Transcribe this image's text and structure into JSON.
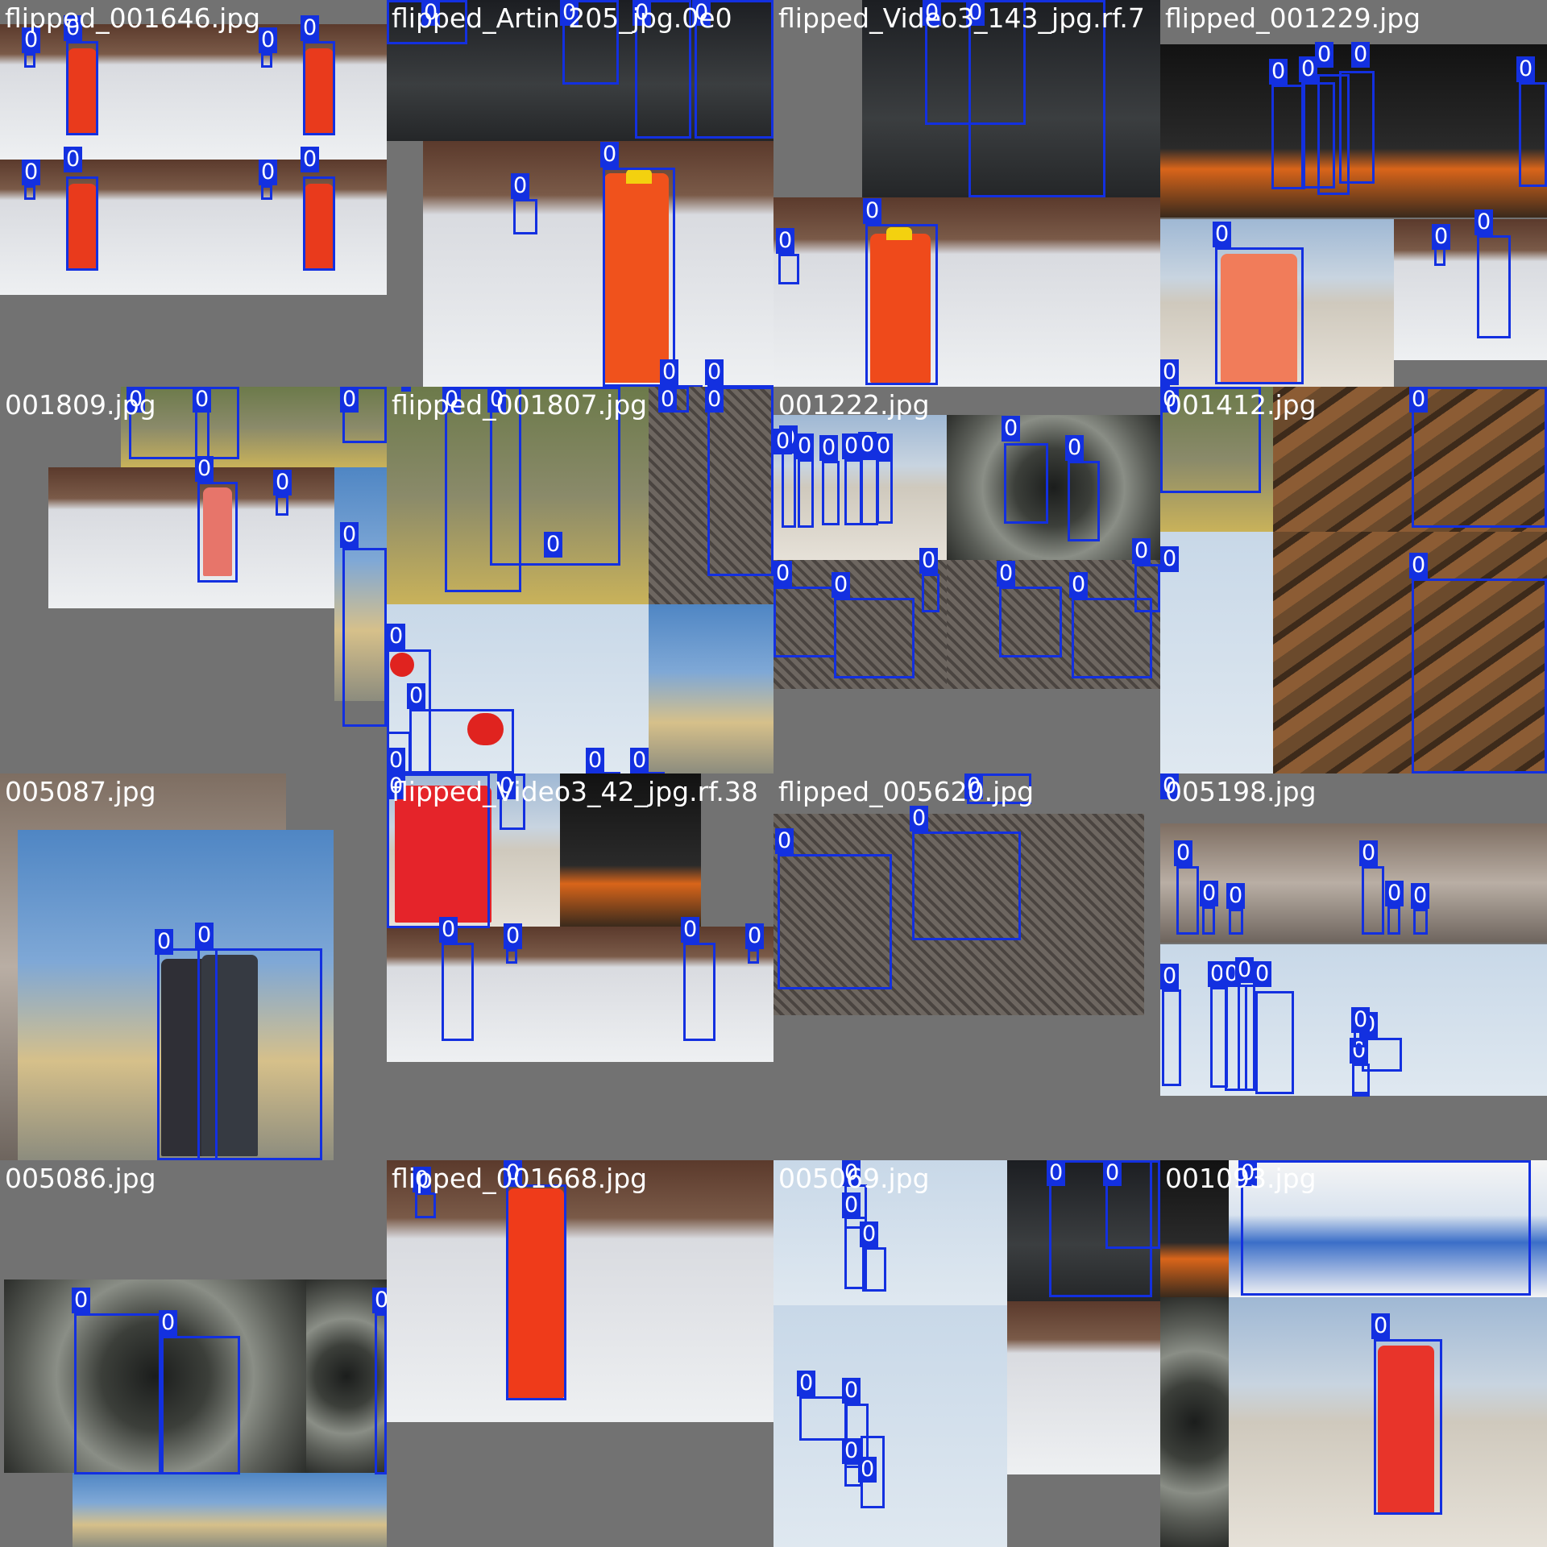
{
  "mosaic": {
    "columns": 4,
    "rows": 4,
    "box_color": "#1330e0",
    "tiles": [
      {
        "title": "flipped_001646.jpg",
        "class_labels": [
          "0",
          "0",
          "0",
          "0",
          "0",
          "0",
          "0",
          "0"
        ]
      },
      {
        "title": "flipped_Artin 205_jpg.0e0",
        "class_labels": [
          "0",
          "0",
          "0",
          "0",
          "0",
          "0",
          "0",
          "0"
        ]
      },
      {
        "title": "flipped_Video3_143_jpg.rf.7",
        "class_labels": [
          "0",
          "0",
          "0",
          "0"
        ]
      },
      {
        "title": "flipped_001229.jpg",
        "class_labels": [
          "0",
          "0",
          "0",
          "0",
          "0",
          "0",
          "0",
          "0",
          "0"
        ]
      },
      {
        "title": "001809.jpg",
        "class_labels": [
          "0",
          "0",
          "0",
          "0",
          "0",
          "0"
        ]
      },
      {
        "title": "flipped_001807.jpg",
        "class_labels": [
          "0",
          "0",
          "0",
          "0",
          "0",
          "0",
          "0",
          "0",
          "0",
          "0"
        ]
      },
      {
        "title": "001222.jpg",
        "class_labels": [
          "0",
          "0",
          "0",
          "0",
          "0",
          "0",
          "0",
          "0",
          "0",
          "0",
          "0",
          "0",
          "0",
          "0",
          "0"
        ]
      },
      {
        "title": "001412.jpg",
        "class_labels": [
          "0",
          "0",
          "0",
          "0",
          "0"
        ]
      },
      {
        "title": "005087.jpg",
        "class_labels": [
          "0",
          "0"
        ]
      },
      {
        "title": "flipped_Video3_42_jpg.rf.38",
        "class_labels": [
          "0",
          "0",
          "0",
          "0",
          "0",
          "0"
        ]
      },
      {
        "title": "flipped_005620.jpg",
        "class_labels": [
          "0",
          "0",
          "0"
        ]
      },
      {
        "title": "005198.jpg",
        "class_labels": [
          "0",
          "0",
          "0",
          "0",
          "0",
          "0",
          "0",
          "0",
          "0",
          "0",
          "0",
          "0",
          "0",
          "0",
          "0"
        ]
      },
      {
        "title": "005086.jpg",
        "class_labels": [
          "0",
          "0",
          "0"
        ]
      },
      {
        "title": "flipped_001668.jpg",
        "class_labels": [
          "0",
          "0"
        ]
      },
      {
        "title": "005069.jpg",
        "class_labels": [
          "0",
          "0",
          "0",
          "0",
          "0",
          "0",
          "0",
          "0",
          "0"
        ]
      },
      {
        "title": "001093.jpg",
        "class_labels": [
          "0",
          "0"
        ]
      }
    ]
  }
}
